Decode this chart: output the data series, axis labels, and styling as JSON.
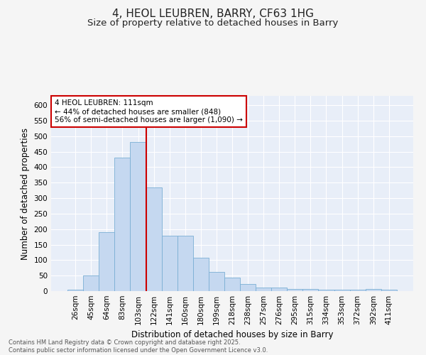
{
  "title": "4, HEOL LEUBREN, BARRY, CF63 1HG",
  "subtitle": "Size of property relative to detached houses in Barry",
  "xlabel": "Distribution of detached houses by size in Barry",
  "ylabel": "Number of detached properties",
  "categories": [
    "26sqm",
    "45sqm",
    "64sqm",
    "83sqm",
    "103sqm",
    "122sqm",
    "141sqm",
    "160sqm",
    "180sqm",
    "199sqm",
    "218sqm",
    "238sqm",
    "257sqm",
    "276sqm",
    "295sqm",
    "315sqm",
    "334sqm",
    "353sqm",
    "372sqm",
    "392sqm",
    "411sqm"
  ],
  "values": [
    5,
    50,
    190,
    430,
    480,
    335,
    178,
    178,
    108,
    62,
    44,
    24,
    12,
    12,
    8,
    8,
    5,
    5,
    5,
    7,
    4
  ],
  "bar_color": "#c5d8f0",
  "bar_edge_color": "#7aafd4",
  "background_color": "#e8eef8",
  "grid_color": "#ffffff",
  "vline_x_index": 4.5,
  "vline_color": "#cc0000",
  "annotation_line1": "4 HEOL LEUBREN: 111sqm",
  "annotation_line2": "← 44% of detached houses are smaller (848)",
  "annotation_line3": "56% of semi-detached houses are larger (1,090) →",
  "annotation_box_color": "#cc0000",
  "ylim": [
    0,
    630
  ],
  "yticks": [
    0,
    50,
    100,
    150,
    200,
    250,
    300,
    350,
    400,
    450,
    500,
    550,
    600
  ],
  "footer": "Contains HM Land Registry data © Crown copyright and database right 2025.\nContains public sector information licensed under the Open Government Licence v3.0.",
  "title_fontsize": 11,
  "subtitle_fontsize": 9.5,
  "axis_label_fontsize": 8.5,
  "tick_fontsize": 7.5,
  "annotation_fontsize": 7.5,
  "footer_fontsize": 6
}
